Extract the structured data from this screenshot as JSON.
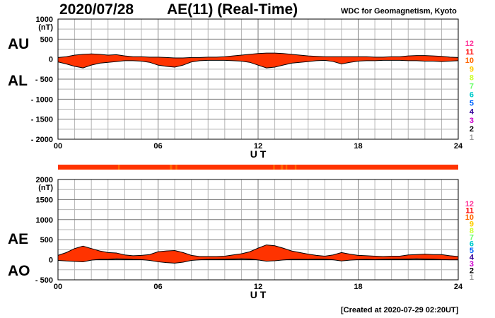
{
  "header": {
    "date": "2020/07/28",
    "title": "AE(11) (Real-Time)",
    "source": "WDC for Geomagnetism, Kyoto"
  },
  "footer": {
    "created": "[Created at 2020-07-29 02:20UT]"
  },
  "colors": {
    "fill": "#ff3300",
    "level_colors": [
      "#cccccc",
      "#999999",
      "#000000",
      "#cc00cc",
      "#330099",
      "#0066ff",
      "#00cccc",
      "#66ff66",
      "#ccff33",
      "#ffcc00",
      "#ff6600",
      "#ff0000",
      "#ff3399"
    ]
  },
  "station_scale": [
    "12",
    "11",
    "10",
    "9",
    "8",
    "7",
    "6",
    "5",
    "4",
    "3",
    "2",
    "1"
  ],
  "chart_data": [
    {
      "type": "area",
      "panel": "AU/AL",
      "labels": {
        "upper": "AU",
        "lower": "AL",
        "unit": "(nT)"
      },
      "ylim": [
        -2000,
        1000
      ],
      "yticks": [
        1000,
        500,
        0,
        -500,
        -1000,
        -1500,
        -2000
      ],
      "ytick_labels": [
        "1000",
        "500",
        "0",
        "- 500",
        "- 1000",
        "- 1500",
        "- 2000"
      ],
      "xlim": [
        0,
        24
      ],
      "xticks": [
        0,
        6,
        12,
        18,
        24
      ],
      "xtick_labels": [
        "00",
        "06",
        "12",
        "18",
        "24"
      ],
      "xlabel": "U T",
      "grid": true,
      "x": [
        0,
        0.5,
        1,
        1.5,
        2,
        2.5,
        3,
        3.5,
        4,
        4.5,
        5,
        5.5,
        6,
        6.5,
        7,
        7.5,
        8,
        8.5,
        9,
        9.5,
        10,
        10.5,
        11,
        11.5,
        12,
        12.5,
        13,
        13.5,
        14,
        14.5,
        15,
        15.5,
        16,
        16.5,
        17,
        17.5,
        18,
        18.5,
        19,
        19.5,
        20,
        20.5,
        21,
        21.5,
        22,
        22.5,
        23,
        23.5,
        24
      ],
      "series": [
        {
          "name": "AU",
          "values": [
            40,
            60,
            100,
            120,
            130,
            120,
            100,
            110,
            80,
            60,
            60,
            50,
            50,
            40,
            30,
            30,
            40,
            40,
            50,
            50,
            60,
            80,
            100,
            120,
            140,
            150,
            150,
            140,
            120,
            100,
            80,
            70,
            60,
            60,
            60,
            60,
            60,
            60,
            50,
            50,
            60,
            60,
            80,
            90,
            90,
            80,
            70,
            50,
            40
          ]
        },
        {
          "name": "AL",
          "values": [
            -70,
            -120,
            -180,
            -220,
            -150,
            -100,
            -80,
            -60,
            -40,
            -40,
            -50,
            -80,
            -150,
            -180,
            -200,
            -150,
            -70,
            -40,
            -30,
            -30,
            -30,
            -40,
            -50,
            -80,
            -150,
            -220,
            -200,
            -150,
            -100,
            -80,
            -60,
            -40,
            -30,
            -60,
            -120,
            -80,
            -50,
            -40,
            -40,
            -30,
            -30,
            -30,
            -40,
            -40,
            -50,
            -50,
            -60,
            -50,
            -40
          ]
        }
      ]
    },
    {
      "type": "area",
      "panel": "AE/AO",
      "labels": {
        "upper": "AE",
        "lower": "AO",
        "unit": "(nT)"
      },
      "ylim": [
        -500,
        2000
      ],
      "yticks": [
        2000,
        1500,
        1000,
        500,
        0,
        -500
      ],
      "ytick_labels": [
        "2000",
        "1500",
        "1000",
        "500",
        "0",
        "- 500"
      ],
      "xlim": [
        0,
        24
      ],
      "xticks": [
        0,
        6,
        12,
        18,
        24
      ],
      "xtick_labels": [
        "00",
        "06",
        "12",
        "18",
        "24"
      ],
      "xlabel": "U T",
      "grid": true,
      "x": [
        0,
        0.5,
        1,
        1.5,
        2,
        2.5,
        3,
        3.5,
        4,
        4.5,
        5,
        5.5,
        6,
        6.5,
        7,
        7.5,
        8,
        8.5,
        9,
        9.5,
        10,
        10.5,
        11,
        11.5,
        12,
        12.5,
        13,
        13.5,
        14,
        14.5,
        15,
        15.5,
        16,
        16.5,
        17,
        17.5,
        18,
        18.5,
        19,
        19.5,
        20,
        20.5,
        21,
        21.5,
        22,
        22.5,
        23,
        23.5,
        24
      ],
      "series": [
        {
          "name": "AE",
          "values": [
            110,
            180,
            280,
            340,
            280,
            220,
            180,
            170,
            120,
            100,
            110,
            130,
            200,
            220,
            230,
            180,
            110,
            80,
            80,
            80,
            90,
            120,
            150,
            200,
            290,
            370,
            350,
            290,
            220,
            180,
            140,
            110,
            90,
            120,
            180,
            140,
            110,
            100,
            90,
            80,
            90,
            90,
            120,
            130,
            140,
            130,
            130,
            100,
            80
          ]
        },
        {
          "name": "AO",
          "values": [
            -15,
            -30,
            -40,
            -50,
            -10,
            10,
            10,
            25,
            20,
            10,
            5,
            -15,
            -50,
            -70,
            -85,
            -60,
            -15,
            0,
            10,
            10,
            15,
            20,
            25,
            20,
            -5,
            -35,
            -25,
            -5,
            10,
            10,
            10,
            15,
            15,
            0,
            -30,
            -10,
            5,
            10,
            5,
            10,
            15,
            15,
            20,
            25,
            20,
            15,
            5,
            0,
            0
          ]
        }
      ]
    }
  ]
}
